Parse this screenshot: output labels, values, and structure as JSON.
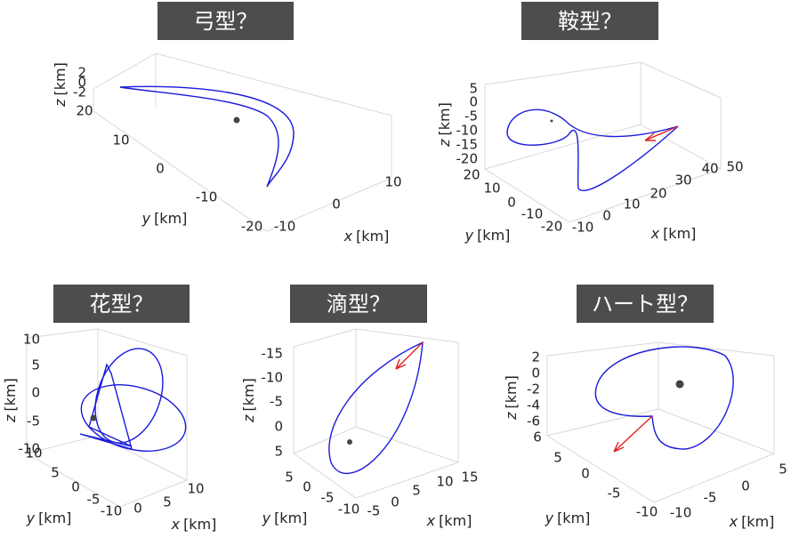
{
  "panels": [
    {
      "title": "弓型？",
      "z": {
        "var": "z",
        "unit": "[km]",
        "ticks": [
          2,
          0,
          -2
        ]
      },
      "y": {
        "var": "y",
        "unit": "[km]",
        "ticks": [
          20,
          10,
          0,
          -10,
          -20
        ]
      },
      "x": {
        "var": "x",
        "unit": "[km]",
        "ticks": [
          -10,
          0,
          10
        ]
      }
    },
    {
      "title": "鞍型？",
      "z": {
        "var": "z",
        "unit": "[km]",
        "ticks": [
          5,
          0,
          -5,
          -10,
          -15,
          -20
        ]
      },
      "y": {
        "var": "y",
        "unit": "[km]",
        "ticks": [
          20,
          10,
          0,
          -10,
          -20
        ]
      },
      "x": {
        "var": "x",
        "unit": "[km]",
        "ticks": [
          -10,
          0,
          10,
          20,
          30,
          40,
          50
        ]
      }
    },
    {
      "title": "花型？",
      "z": {
        "var": "z",
        "unit": "[km]",
        "ticks": [
          10,
          5,
          0,
          -5,
          -10
        ]
      },
      "y": {
        "var": "y",
        "unit": "[km]",
        "ticks": [
          10,
          5,
          0,
          -5,
          -10
        ]
      },
      "x": {
        "var": "x",
        "unit": "[km]",
        "ticks": [
          0,
          5,
          10
        ]
      }
    },
    {
      "title": "滴型？",
      "z": {
        "var": "z",
        "unit": "[km]",
        "ticks": [
          -15,
          -10,
          -5,
          0,
          5
        ]
      },
      "y": {
        "var": "y",
        "unit": "[km]",
        "ticks": [
          5,
          0,
          -5,
          -10
        ]
      },
      "x": {
        "var": "x",
        "unit": "[km]",
        "ticks": [
          -5,
          0,
          5,
          10,
          15
        ]
      }
    },
    {
      "title": "ハート型？",
      "z": {
        "var": "z",
        "unit": "[km]",
        "ticks": [
          2,
          0,
          -2,
          -4,
          -6
        ]
      },
      "y": {
        "var": "y",
        "unit": "[km]",
        "ticks": [
          6,
          5,
          0,
          -5,
          -10
        ]
      },
      "x": {
        "var": "x",
        "unit": "[km]",
        "ticks": [
          -10,
          -5,
          0,
          5
        ]
      }
    }
  ]
}
